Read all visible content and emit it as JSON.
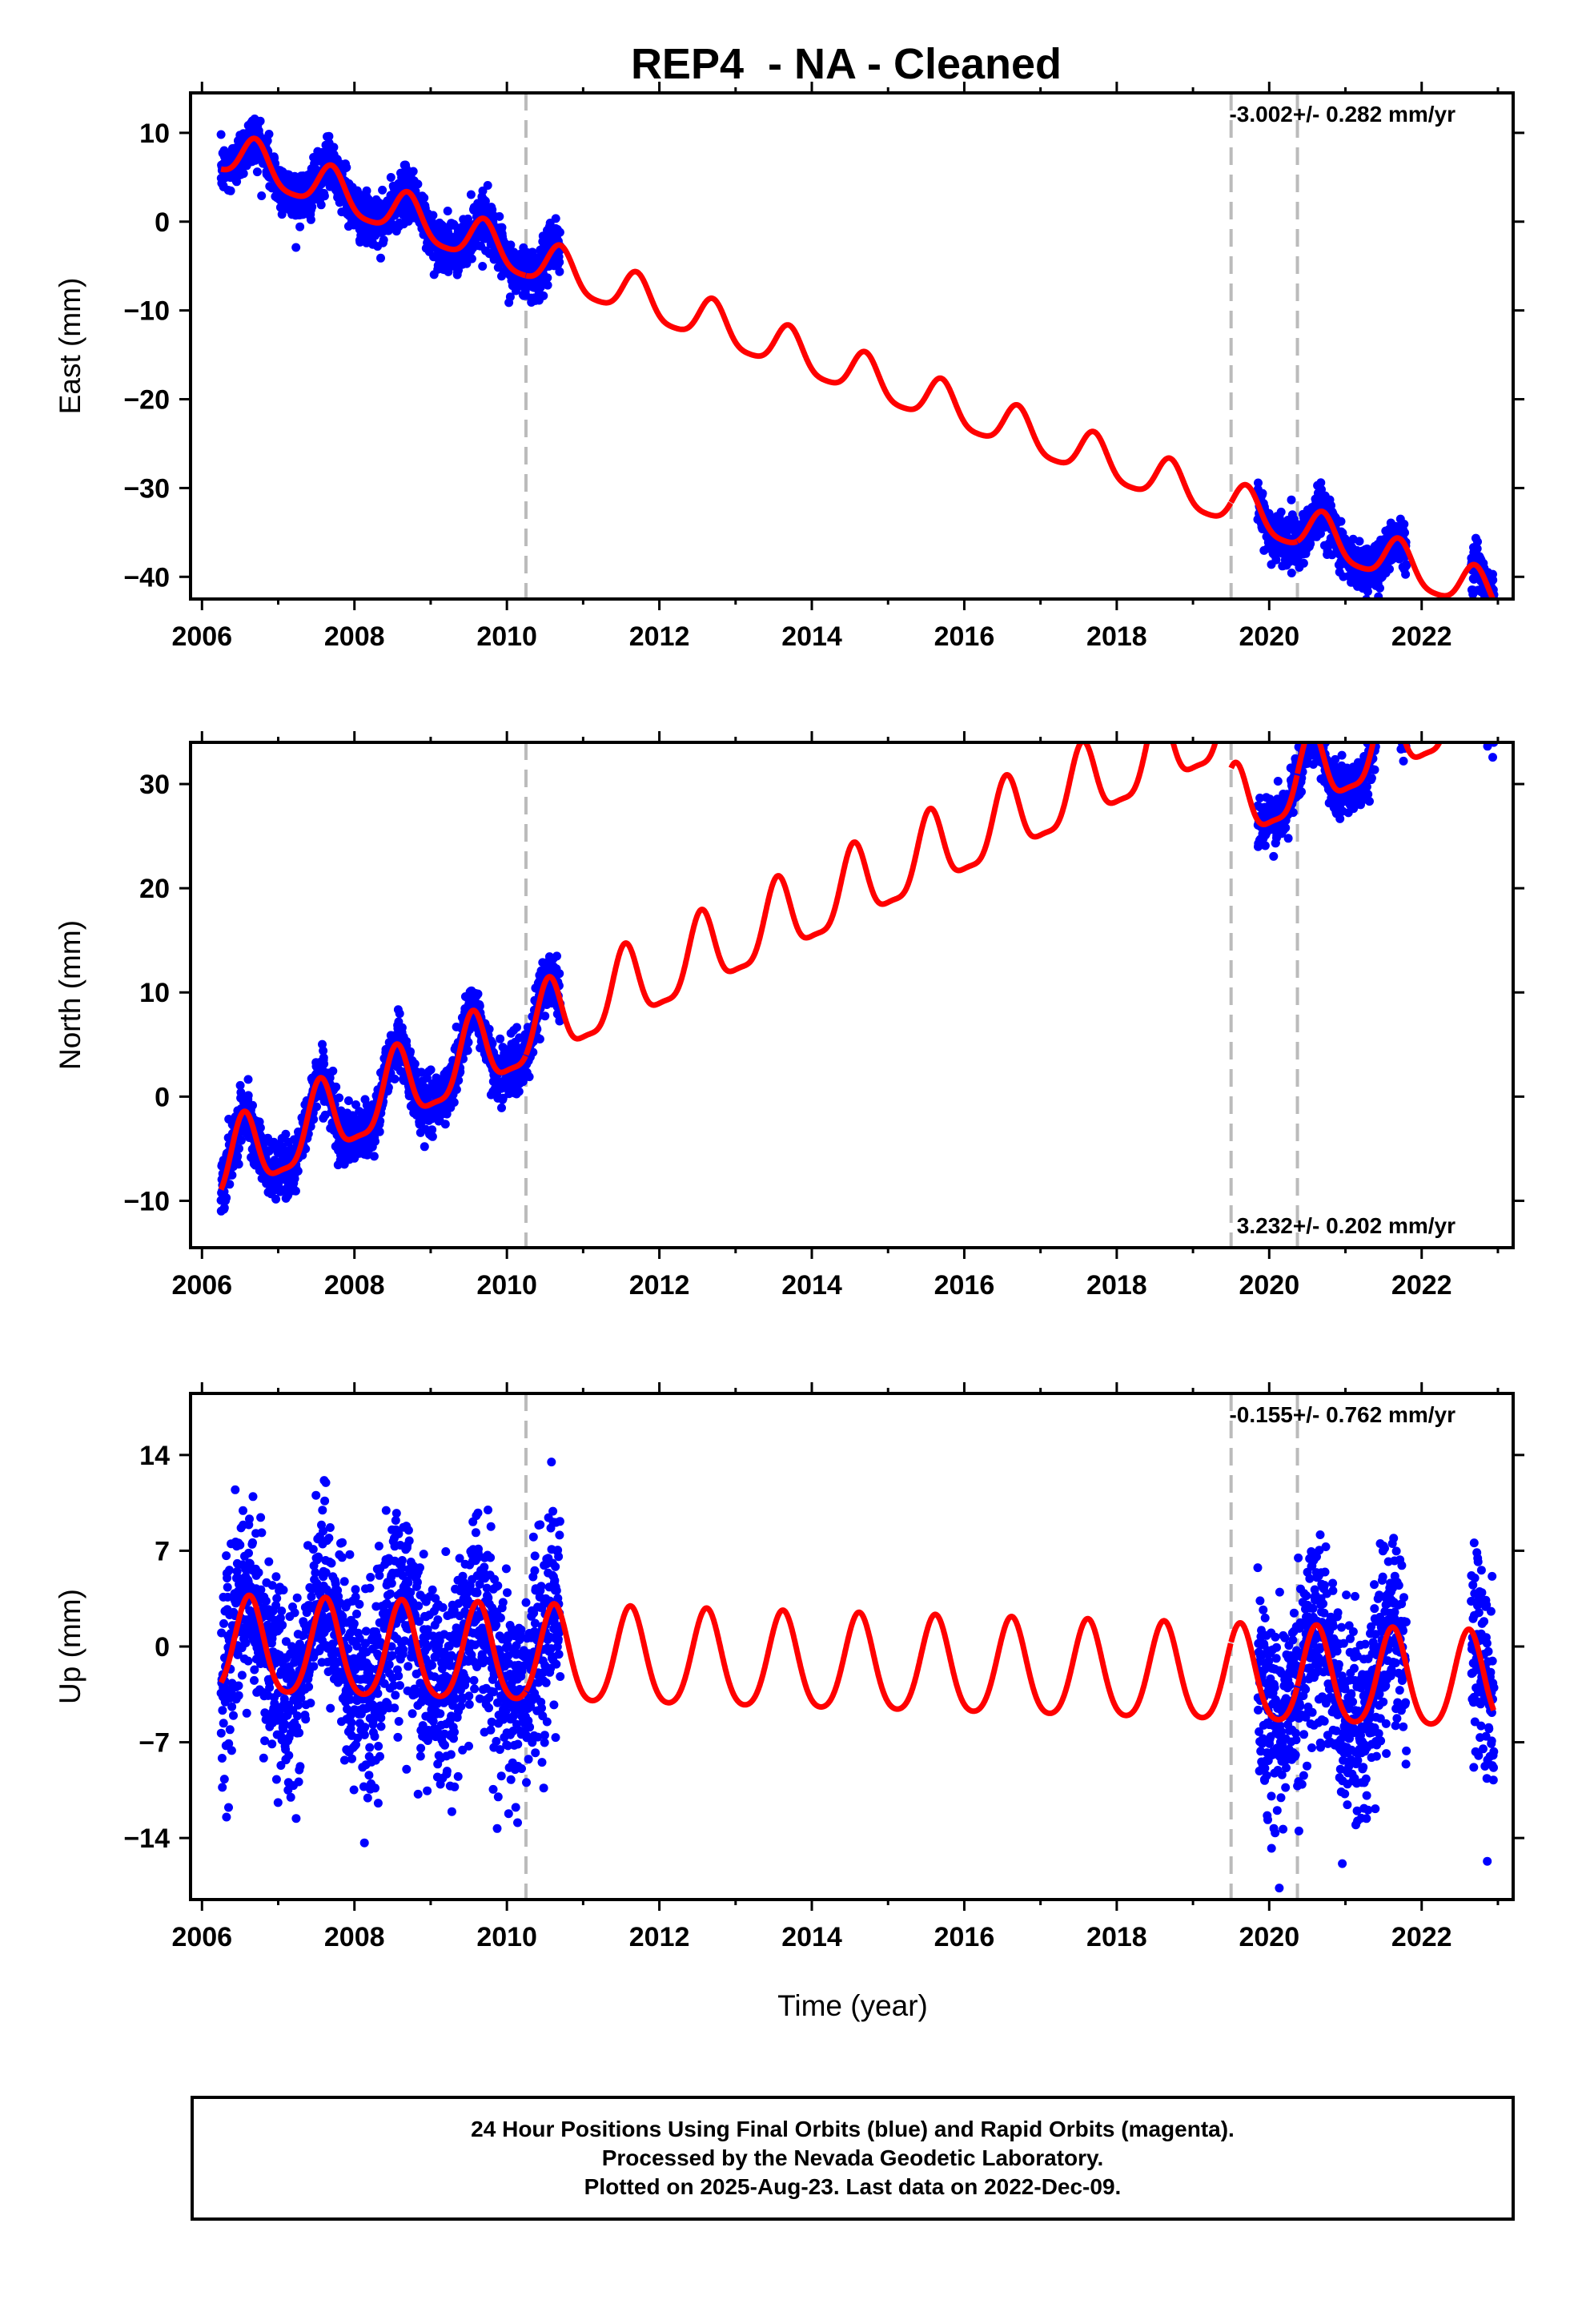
{
  "title": "REP4  - NA - Cleaned",
  "x_axis_label": "Time (year)",
  "footer": {
    "line1": "24 Hour Positions Using Final Orbits (blue) and Rapid Orbits (magenta).",
    "line2": "Processed by the Nevada Geodetic Laboratory.",
    "line3": "Plotted on 2025-Aug-23. Last data on 2022-Dec-09."
  },
  "colors": {
    "final_orbits": "#0000ff",
    "model_fit": "#ff0000",
    "offset_lines": "#bbbbbb",
    "frame": "#000000"
  },
  "chart_data": [
    {
      "type": "scatter",
      "component": "east",
      "ylabel": "East (mm)",
      "rate_text": "-3.002+/- 0.282 mm/yr",
      "rate_position": "top-right",
      "xlim": [
        2005.85,
        2023.2
      ],
      "ylim": [
        -42.5,
        14.5
      ],
      "xticks": [
        2006,
        2008,
        2010,
        2012,
        2014,
        2016,
        2018,
        2020,
        2022
      ],
      "yticks": [
        -40,
        -30,
        -20,
        -10,
        0,
        10
      ],
      "grid": false,
      "offset_epochs": [
        2010.25,
        2019.5,
        2020.37
      ],
      "data_periods": [
        [
          2006.25,
          2010.7
        ],
        [
          2019.85,
          2021.8
        ],
        [
          2022.65,
          2022.95
        ]
      ],
      "model": {
        "intercept_at_2006_25": 7.8,
        "rate_mm_yr": -3.0,
        "annual_amplitude": 2.4,
        "annual_peak_year_fraction": 0.7,
        "semiannual_amplitude": 0.5,
        "offset_steps": [
          0,
          0,
          0
        ]
      },
      "scatter_noise_mm": 1.4
    },
    {
      "type": "scatter",
      "component": "north",
      "ylabel": "North (mm)",
      "rate_text": "3.232+/- 0.202 mm/yr",
      "rate_position": "bottom-right",
      "xlim": [
        2005.85,
        2023.2
      ],
      "ylim": [
        -14.5,
        34
      ],
      "xticks": [
        2006,
        2008,
        2010,
        2012,
        2014,
        2016,
        2018,
        2020,
        2022
      ],
      "yticks": [
        -10,
        0,
        10,
        20,
        30
      ],
      "grid": false,
      "offset_epochs": [
        2010.25,
        2019.5,
        2020.37
      ],
      "data_periods": [
        [
          2006.25,
          2010.7
        ],
        [
          2019.85,
          2021.8
        ],
        [
          2022.65,
          2022.95
        ]
      ],
      "model": {
        "intercept_at_2006_25": -7.0,
        "rate_mm_yr": 3.23,
        "annual_amplitude": 3.6,
        "annual_peak_year_fraction": 0.55,
        "semiannual_amplitude": 1.0,
        "offset_steps": [
          0,
          -8.5,
          0
        ]
      },
      "scatter_noise_mm": 1.3
    },
    {
      "type": "scatter",
      "component": "up",
      "ylabel": "Up (mm)",
      "rate_text": "-0.155+/- 0.762 mm/yr",
      "rate_position": "top-right",
      "xlim": [
        2005.85,
        2023.2
      ],
      "ylim": [
        -18.5,
        18.5
      ],
      "xticks": [
        2006,
        2008,
        2010,
        2012,
        2014,
        2016,
        2018,
        2020,
        2022
      ],
      "yticks": [
        -14,
        -7,
        0,
        7,
        14
      ],
      "grid": false,
      "offset_epochs": [
        2010.25,
        2019.5,
        2020.37
      ],
      "data_periods": [
        [
          2006.25,
          2010.7
        ],
        [
          2019.85,
          2021.8
        ],
        [
          2022.65,
          2022.95
        ]
      ],
      "model": {
        "intercept_at_2006_25": -0.2,
        "rate_mm_yr": -0.155,
        "annual_amplitude": 3.5,
        "annual_peak_year_fraction": 0.62,
        "semiannual_amplitude": 0.5,
        "offset_steps": [
          0,
          0,
          0
        ]
      },
      "scatter_noise_mm": 3.5
    }
  ]
}
